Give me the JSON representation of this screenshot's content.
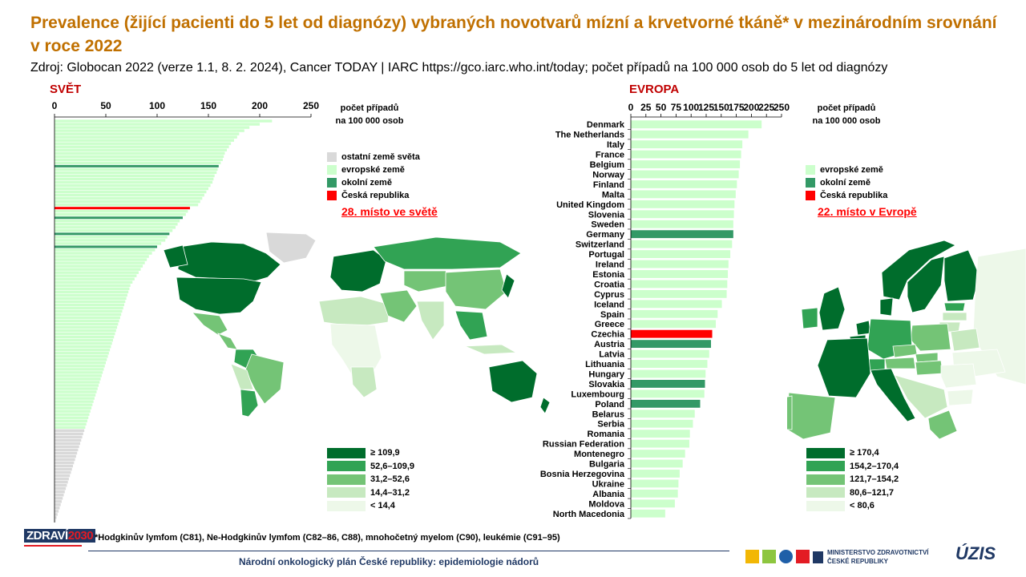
{
  "header": {
    "title": "Prevalence (žijící pacienti do 5 let od diagnózy) vybraných novotvarů mízní a krvetvorné tkáně* v mezinárodním srovnání v roce 2022",
    "source": "Zdroj: Globocan 2022 (verze 1.1, 8. 2. 2024), Cancer TODAY | IARC https://gco.iarc.who.int/today; počet případů na 100 000 osob do 5 let od diagnózy"
  },
  "world": {
    "section_label": "SVĚT",
    "unit_label_1": "počet případů",
    "unit_label_2": "na 100 000 osob",
    "rank_text": "28. místo ve světě",
    "legend": [
      {
        "label": "ostatní země světa",
        "color": "#d9d9d9"
      },
      {
        "label": "evropské země",
        "color": "#ccffcc"
      },
      {
        "label": "okolní země",
        "color": "#339966"
      },
      {
        "label": "Česká republika",
        "color": "#ff0000"
      }
    ],
    "map_legend": [
      {
        "label": "≥ 109,9",
        "color": "#006d2c"
      },
      {
        "label": "52,6–109,9",
        "color": "#31a354"
      },
      {
        "label": "31,2–52,6",
        "color": "#74c476"
      },
      {
        "label": "14,4–31,2",
        "color": "#c7e9c0"
      },
      {
        "label": "< 14,4",
        "color": "#edf8e9"
      }
    ]
  },
  "europe": {
    "section_label": "EVROPA",
    "unit_label_1": "počet případů",
    "unit_label_2": "na 100 000 osob",
    "rank_text": "22. místo v Evropě",
    "legend": [
      {
        "label": "evropské země",
        "color": "#ccffcc"
      },
      {
        "label": "okolní země",
        "color": "#339966"
      },
      {
        "label": "Česká republika",
        "color": "#ff0000"
      }
    ],
    "map_legend": [
      {
        "label": "≥ 170,4",
        "color": "#006d2c"
      },
      {
        "label": "154,2–170,4",
        "color": "#31a354"
      },
      {
        "label": "121,7–154,2",
        "color": "#74c476"
      },
      {
        "label": "80,6–121,7",
        "color": "#c7e9c0"
      },
      {
        "label": "< 80,6",
        "color": "#edf8e9"
      }
    ]
  },
  "chart_data": [
    {
      "type": "bar",
      "orientation": "horizontal",
      "xlim": [
        0,
        250
      ],
      "ticks": [
        0,
        50,
        100,
        150,
        200,
        250
      ],
      "xlabel": "počet případů na 100 000 osob",
      "note": "countries unlabeled; values read off the bar lengths",
      "values": [
        212,
        200,
        190,
        185,
        180,
        178,
        175,
        172,
        170,
        168,
        166,
        165,
        164,
        162,
        160,
        159,
        158,
        156,
        155,
        154,
        152,
        150,
        148,
        146,
        144,
        142,
        140,
        132,
        130,
        128,
        125,
        122,
        120,
        118,
        115,
        112,
        110,
        108,
        104,
        100,
        98,
        95,
        92,
        90,
        88,
        86,
        84,
        82,
        80,
        78,
        76,
        74,
        73,
        72,
        71,
        70,
        69,
        68,
        67,
        66,
        65,
        64,
        63,
        62,
        61,
        60,
        59,
        58,
        57,
        56,
        55,
        54,
        53,
        52,
        51,
        50,
        49,
        48,
        47,
        46,
        45,
        44,
        43,
        42,
        41,
        40,
        39,
        38,
        37,
        36,
        35,
        34,
        33,
        32,
        31,
        30,
        29,
        28,
        27,
        26,
        25,
        24,
        23,
        22,
        21,
        20,
        19,
        18,
        17,
        16,
        15,
        14,
        13,
        12,
        11,
        10,
        9,
        8,
        7,
        6,
        5,
        4,
        3,
        2,
        1
      ],
      "group_index": {
        "european": [
          0,
          1,
          2,
          3,
          4,
          5,
          6,
          7,
          8,
          9,
          10,
          11,
          12,
          13,
          14,
          15,
          16,
          17,
          18,
          19,
          20,
          21,
          22,
          23,
          24,
          25,
          26,
          28,
          29,
          31,
          32,
          33,
          34,
          35,
          36,
          37,
          38,
          40,
          41,
          42,
          43,
          44,
          45,
          46,
          47,
          48,
          49,
          50,
          51,
          52,
          53,
          54,
          55,
          56,
          57,
          58,
          59,
          60,
          61,
          62,
          63,
          64,
          65,
          66,
          67,
          68,
          69,
          70,
          71,
          72,
          73,
          74,
          75,
          76,
          77,
          78,
          79,
          80,
          81,
          82,
          83,
          84,
          85,
          86,
          87,
          88,
          89,
          90,
          91,
          92,
          93,
          94,
          95
        ],
        "neighbours": [
          14,
          30,
          35,
          39
        ],
        "czechia": [
          27
        ]
      },
      "series": [
        {
          "name": "ostatní země světa",
          "color": "#d9d9d9"
        },
        {
          "name": "evropské země",
          "color": "#ccffcc"
        },
        {
          "name": "okolní země",
          "color": "#339966"
        },
        {
          "name": "Česká republika",
          "color": "#ff0000"
        }
      ]
    },
    {
      "type": "bar",
      "orientation": "horizontal",
      "xlim": [
        0,
        250
      ],
      "ticks": [
        0,
        25,
        50,
        75,
        100,
        125,
        150,
        175,
        200,
        225,
        250
      ],
      "xlabel": "počet případů na 100 000 osob",
      "categories": [
        "Denmark",
        "The Netherlands",
        "Italy",
        "France",
        "Belgium",
        "Norway",
        "Finland",
        "Malta",
        "United Kingdom",
        "Slovenia",
        "Sweden",
        "Germany",
        "Switzerland",
        "Portugal",
        "Ireland",
        "Estonia",
        "Croatia",
        "Cyprus",
        "Iceland",
        "Spain",
        "Greece",
        "Czechia",
        "Austria",
        "Latvia",
        "Lithuania",
        "Hungary",
        "Slovakia",
        "Luxembourg",
        "Poland",
        "Belarus",
        "Serbia",
        "Romania",
        "Russian Federation",
        "Montenegro",
        "Bulgaria",
        "Bosnia Herzegovina",
        "Ukraine",
        "Albania",
        "Moldova",
        "North Macedonia"
      ],
      "values": [
        217,
        195,
        185,
        183,
        181,
        179,
        176,
        174,
        172,
        171,
        170,
        170,
        168,
        165,
        162,
        161,
        160,
        159,
        151,
        144,
        141,
        135,
        133,
        130,
        127,
        124,
        123,
        122,
        115,
        106,
        103,
        98,
        97,
        90,
        86,
        81,
        79,
        78,
        73,
        57
      ],
      "groups": [
        "E",
        "E",
        "E",
        "E",
        "E",
        "E",
        "E",
        "E",
        "E",
        "E",
        "E",
        "N",
        "E",
        "E",
        "E",
        "E",
        "E",
        "E",
        "E",
        "E",
        "E",
        "C",
        "N",
        "E",
        "E",
        "E",
        "N",
        "E",
        "N",
        "E",
        "E",
        "E",
        "E",
        "E",
        "E",
        "E",
        "E",
        "E",
        "E",
        "E"
      ],
      "series": [
        {
          "name": "evropské země",
          "color": "#ccffcc"
        },
        {
          "name": "okolní země",
          "color": "#339966"
        },
        {
          "name": "Česká republika",
          "color": "#ff0000"
        }
      ]
    }
  ],
  "footer": {
    "note": "*Hodgkinův lymfom (C81), Ne-Hodgkinův lymfom (C82–86, C88), mnohočetný myelom (C90), leukémie (C91–95)",
    "title": "Národní onkologický plán České republiky: epidemiologie nádorů",
    "logo_main": "ZDRAVÍ",
    "logo_year": "2030",
    "ministry_1": "MINISTERSTVO ZDRAVOTNICTVÍ",
    "ministry_2": "ČESKÉ REPUBLIKY",
    "uzis": "ÚZIS"
  }
}
